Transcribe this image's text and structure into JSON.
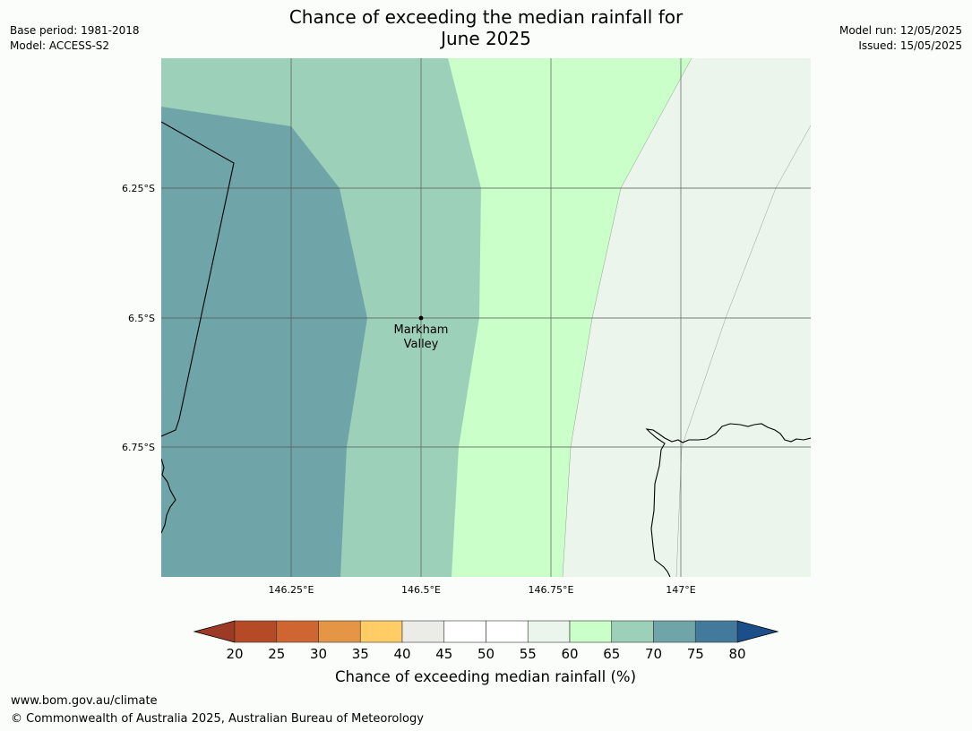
{
  "header": {
    "title_line1": "Chance of exceeding the median rainfall for",
    "title_line2": "June 2025",
    "base_period": "Base period: 1981-2018",
    "model": "Model: ACCESS-S2",
    "model_run": "Model run: 12/05/2025",
    "issued": "Issued: 15/05/2025"
  },
  "map": {
    "lon_ticks": [
      "146.25°E",
      "146.5°E",
      "146.75°E",
      "147°E"
    ],
    "lat_ticks": [
      "6.25°S",
      "6.5°S",
      "6.75°S"
    ],
    "place_name_line1": "Markham",
    "place_name_line2": "Valley",
    "colors": {
      "c70_75": "#6fa5a8",
      "c65_70": "#9dd0b9",
      "c60_65": "#caffca",
      "c55_60": "#ebf5eb"
    }
  },
  "legend": {
    "label": "Chance of exceeding median rainfall (%)",
    "ticks": [
      "20",
      "25",
      "30",
      "35",
      "40",
      "45",
      "50",
      "55",
      "60",
      "65",
      "70",
      "75",
      "80"
    ],
    "colors": [
      "#b44a26",
      "#cf6530",
      "#e59546",
      "#ffcc66",
      "#ebebe8",
      "#ffffff",
      "#ffffff",
      "#ebf5eb",
      "#caffca",
      "#9dd0b9",
      "#6fa5a8",
      "#437a9b"
    ],
    "under_color": "#9c3a26",
    "over_color": "#1c4f89"
  },
  "footer": {
    "url": "www.bom.gov.au/climate",
    "copyright": "© Commonwealth of Australia 2025, Australian Bureau of Meteorology"
  }
}
